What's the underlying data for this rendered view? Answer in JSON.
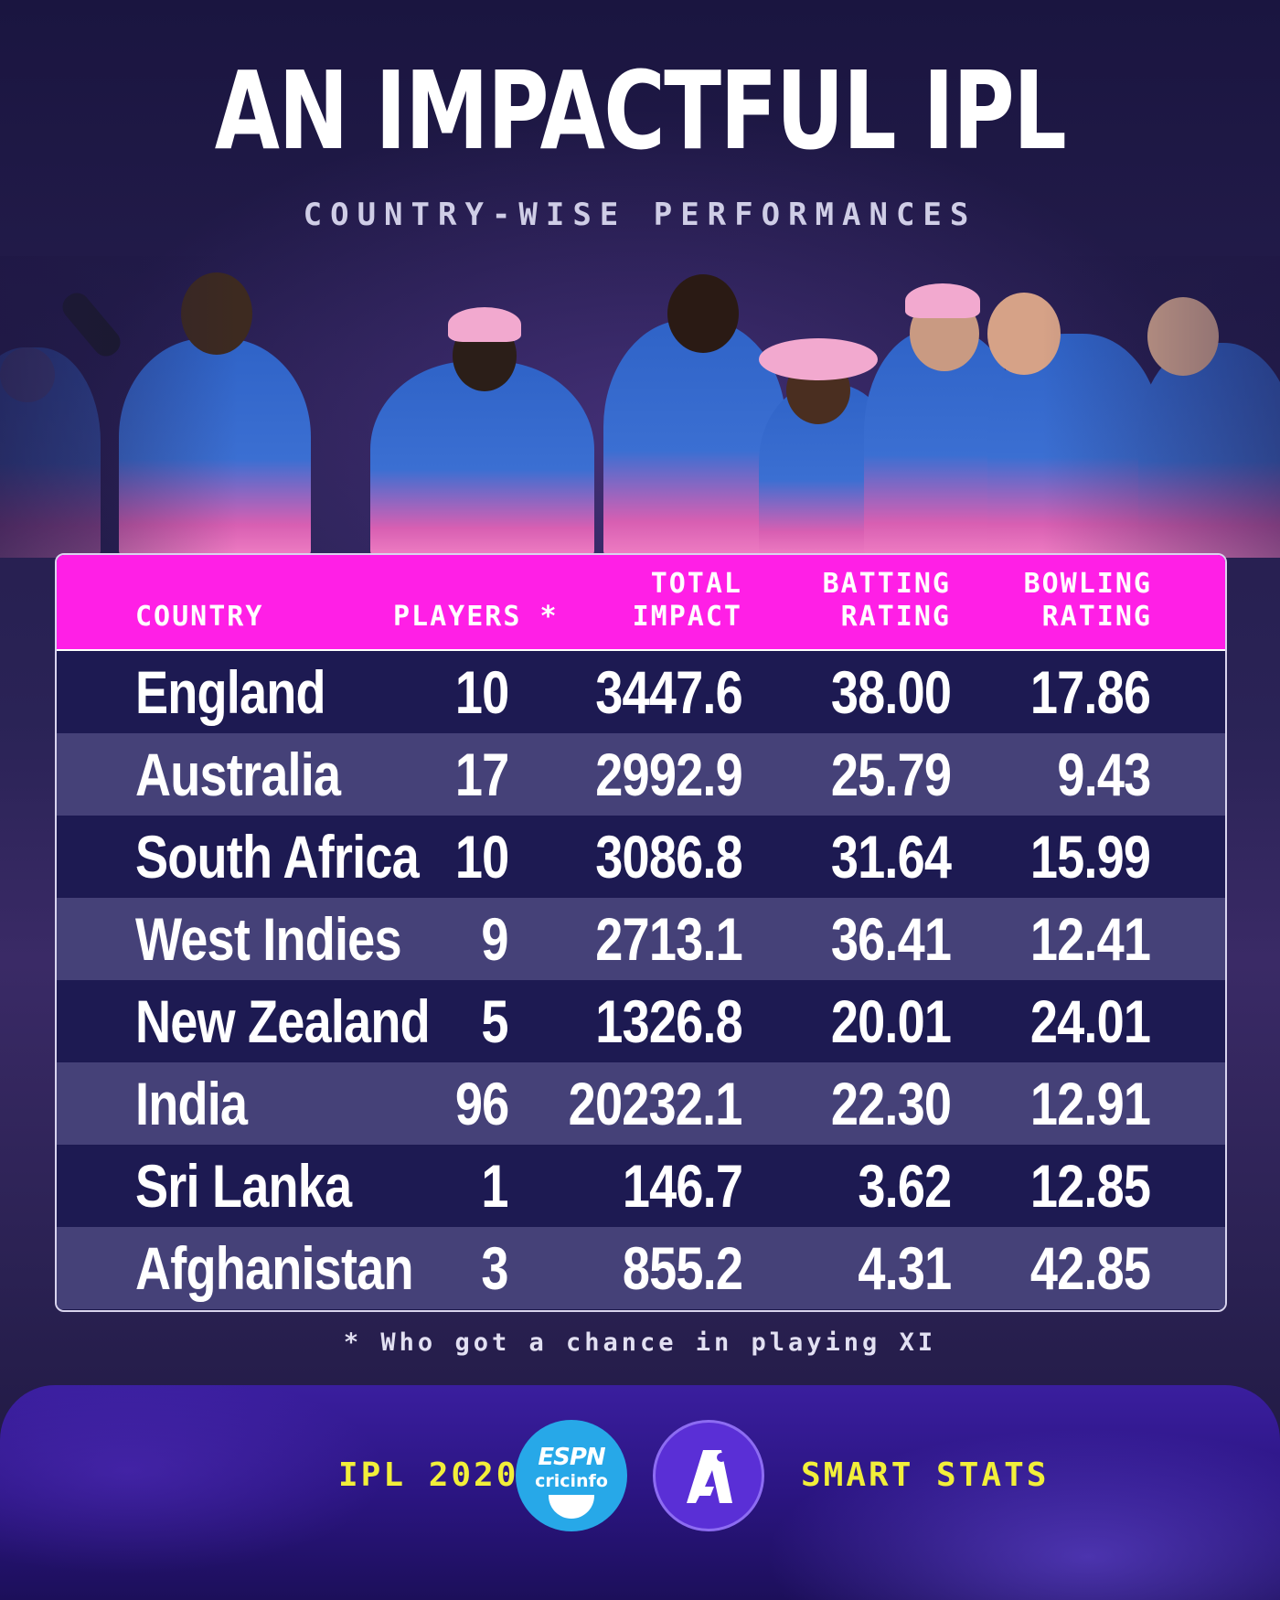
{
  "title": "AN IMPACTFUL IPL",
  "subtitle": "COUNTRY-WISE PERFORMANCES",
  "table": {
    "headers": {
      "country": "COUNTRY",
      "players": "PLAYERS *",
      "impact_line1": "TOTAL",
      "impact_line2": "IMPACT",
      "batting_line1": "BATTING",
      "batting_line2": "RATING",
      "bowling_line1": "BOWLING",
      "bowling_line2": "RATING"
    },
    "rows": [
      {
        "country": "England",
        "players": "10",
        "total_impact": "3447.6",
        "batting_rating": "38.00",
        "bowling_rating": "17.86"
      },
      {
        "country": "Australia",
        "players": "17",
        "total_impact": "2992.9",
        "batting_rating": "25.79",
        "bowling_rating": "9.43"
      },
      {
        "country": "South Africa",
        "players": "10",
        "total_impact": "3086.8",
        "batting_rating": "31.64",
        "bowling_rating": "15.99"
      },
      {
        "country": "West Indies",
        "players": "9",
        "total_impact": "2713.1",
        "batting_rating": "36.41",
        "bowling_rating": "12.41"
      },
      {
        "country": "New Zealand",
        "players": "5",
        "total_impact": "1326.8",
        "batting_rating": "20.01",
        "bowling_rating": "24.01"
      },
      {
        "country": "India",
        "players": "96",
        "total_impact": "20232.1",
        "batting_rating": "22.30",
        "bowling_rating": "12.91"
      },
      {
        "country": "Sri Lanka",
        "players": "1",
        "total_impact": "146.7",
        "batting_rating": "3.62",
        "bowling_rating": "12.85"
      },
      {
        "country": "Afghanistan",
        "players": "3",
        "total_impact": "855.2",
        "batting_rating": "4.31",
        "bowling_rating": "42.85"
      }
    ]
  },
  "footnote": "* Who got a chance in playing XI",
  "footer": {
    "left_label": "IPL 2020",
    "right_label": "SMART STATS",
    "espn_logo_line1": "ESPN",
    "espn_logo_line2": "cricinfo"
  },
  "colors": {
    "header_magenta": "#ff1fe6",
    "row_dark": "#1d1a52",
    "row_light": "#454178",
    "footer_yellow": "#f2ef3a",
    "espn_blue": "#27a8e8",
    "smart_stats_purple": "#5a2fd6"
  },
  "icons": {
    "espn_logo": "espncricinfo-logo",
    "smart_stats_logo": "smart-stats-logo"
  }
}
